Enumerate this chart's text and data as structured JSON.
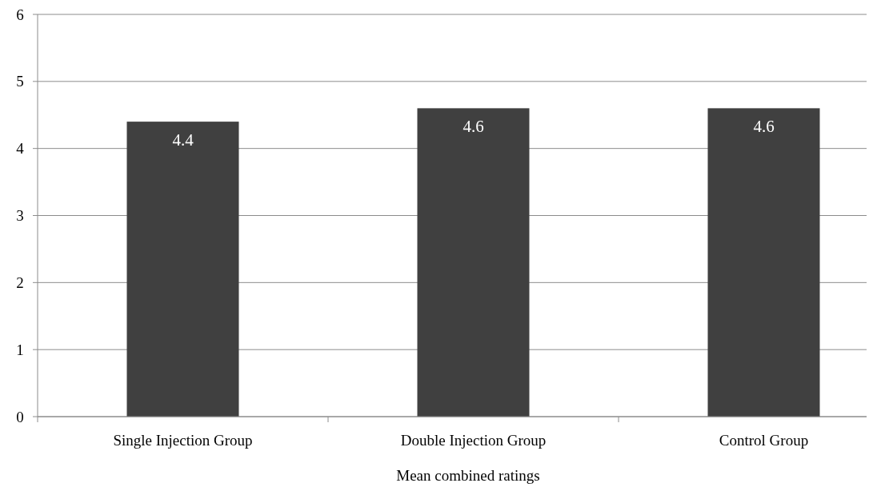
{
  "chart_data": {
    "type": "bar",
    "xlabel": "Mean combined ratings",
    "categories": [
      "Single Injection Group",
      "Double Injection Group",
      "Control Group"
    ],
    "values": [
      4.4,
      4.6,
      4.6
    ],
    "color": "#404040",
    "ylim": [
      0,
      6
    ],
    "yticks": [
      0,
      1,
      2,
      3,
      4,
      5,
      6
    ],
    "grid": "y",
    "data_labels": true
  }
}
